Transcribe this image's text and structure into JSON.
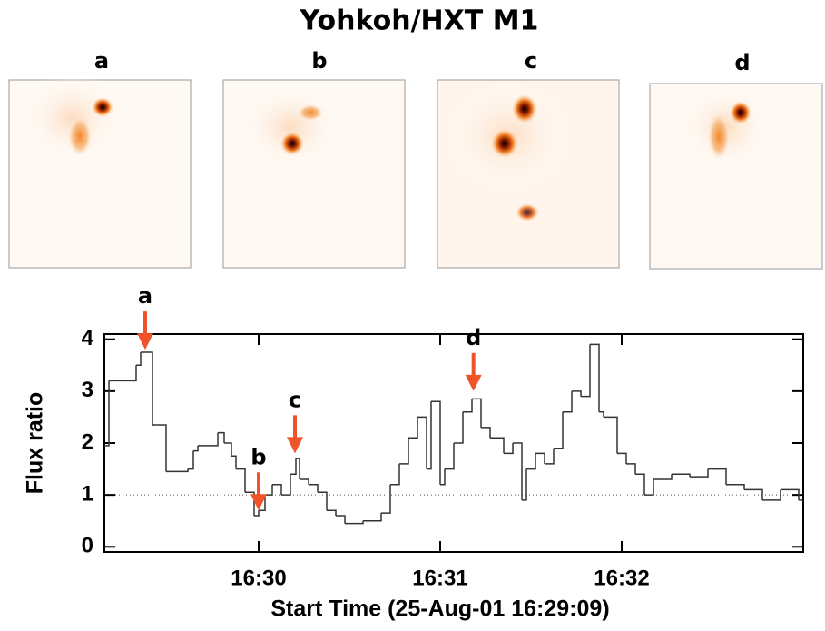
{
  "title": "Yohkoh/HXT M1",
  "panels": [
    "a",
    "b",
    "c",
    "d"
  ],
  "chart_data": {
    "type": "step",
    "xlabel": "Start Time (25-Aug-01 16:29:09)",
    "ylabel": "Flux ratio",
    "color": "#333333",
    "x": [
      0,
      1.5,
      10.5,
      12,
      15.9,
      20.4,
      27.6,
      29.4,
      30.9,
      37.5,
      39.6,
      42,
      43.5,
      46.5,
      49.5,
      51,
      53.1,
      55.5,
      58.5,
      61.5,
      63.3,
      64.5,
      67.5,
      70.5,
      73.5,
      76.5,
      79.5,
      85.5,
      91.5,
      94.5,
      97.5,
      100.5,
      103.5,
      106.5,
      108,
      111,
      112.5,
      115.5,
      118.5,
      121.5,
      124.5,
      127.5,
      132,
      135,
      138,
      139.5,
      142.5,
      145.5,
      148.5,
      151.5,
      154.5,
      157.5,
      160.5,
      163.5,
      165,
      169.5,
      172.5,
      175.5,
      178.5,
      181.5,
      187.5,
      193.5,
      199.5,
      205.5,
      211.5,
      217.5,
      223.5,
      229.5
    ],
    "values": [
      1.95,
      3.2,
      3.5,
      3.75,
      2.35,
      1.45,
      1.5,
      1.85,
      1.95,
      2.2,
      2.0,
      1.75,
      1.5,
      1.05,
      0.6,
      0.7,
      1.0,
      1.2,
      1.0,
      1.4,
      1.7,
      1.3,
      1.2,
      1.05,
      0.7,
      0.6,
      0.45,
      0.5,
      0.65,
      1.2,
      1.6,
      2.1,
      2.5,
      1.5,
      2.8,
      1.2,
      1.5,
      2.0,
      2.6,
      2.85,
      2.3,
      2.1,
      1.8,
      2.0,
      0.9,
      1.5,
      1.8,
      1.6,
      1.9,
      2.6,
      3.0,
      2.9,
      3.9,
      2.6,
      2.5,
      1.8,
      1.6,
      1.4,
      1.0,
      1.3,
      1.4,
      1.35,
      1.5,
      1.2,
      1.1,
      0.9,
      1.1,
      0.9
    ],
    "xlim": [
      0,
      231
    ],
    "xticks": [
      {
        "value": 51,
        "label": "16:30"
      },
      {
        "value": 111,
        "label": "16:31"
      },
      {
        "value": 171,
        "label": "16:32"
      }
    ],
    "ylim": [
      -0.1,
      4.1
    ],
    "yticks": [
      0,
      1,
      2,
      3,
      4
    ],
    "reference_line": 1,
    "annotation_color": "#f0522a",
    "annotations": [
      {
        "label": "a",
        "x": 13.5,
        "y": 3.8
      },
      {
        "label": "b",
        "x": 51,
        "y": 0.7
      },
      {
        "label": "c",
        "x": 63,
        "y": 1.8
      },
      {
        "label": "d",
        "x": 122,
        "y": 3.0
      }
    ]
  }
}
